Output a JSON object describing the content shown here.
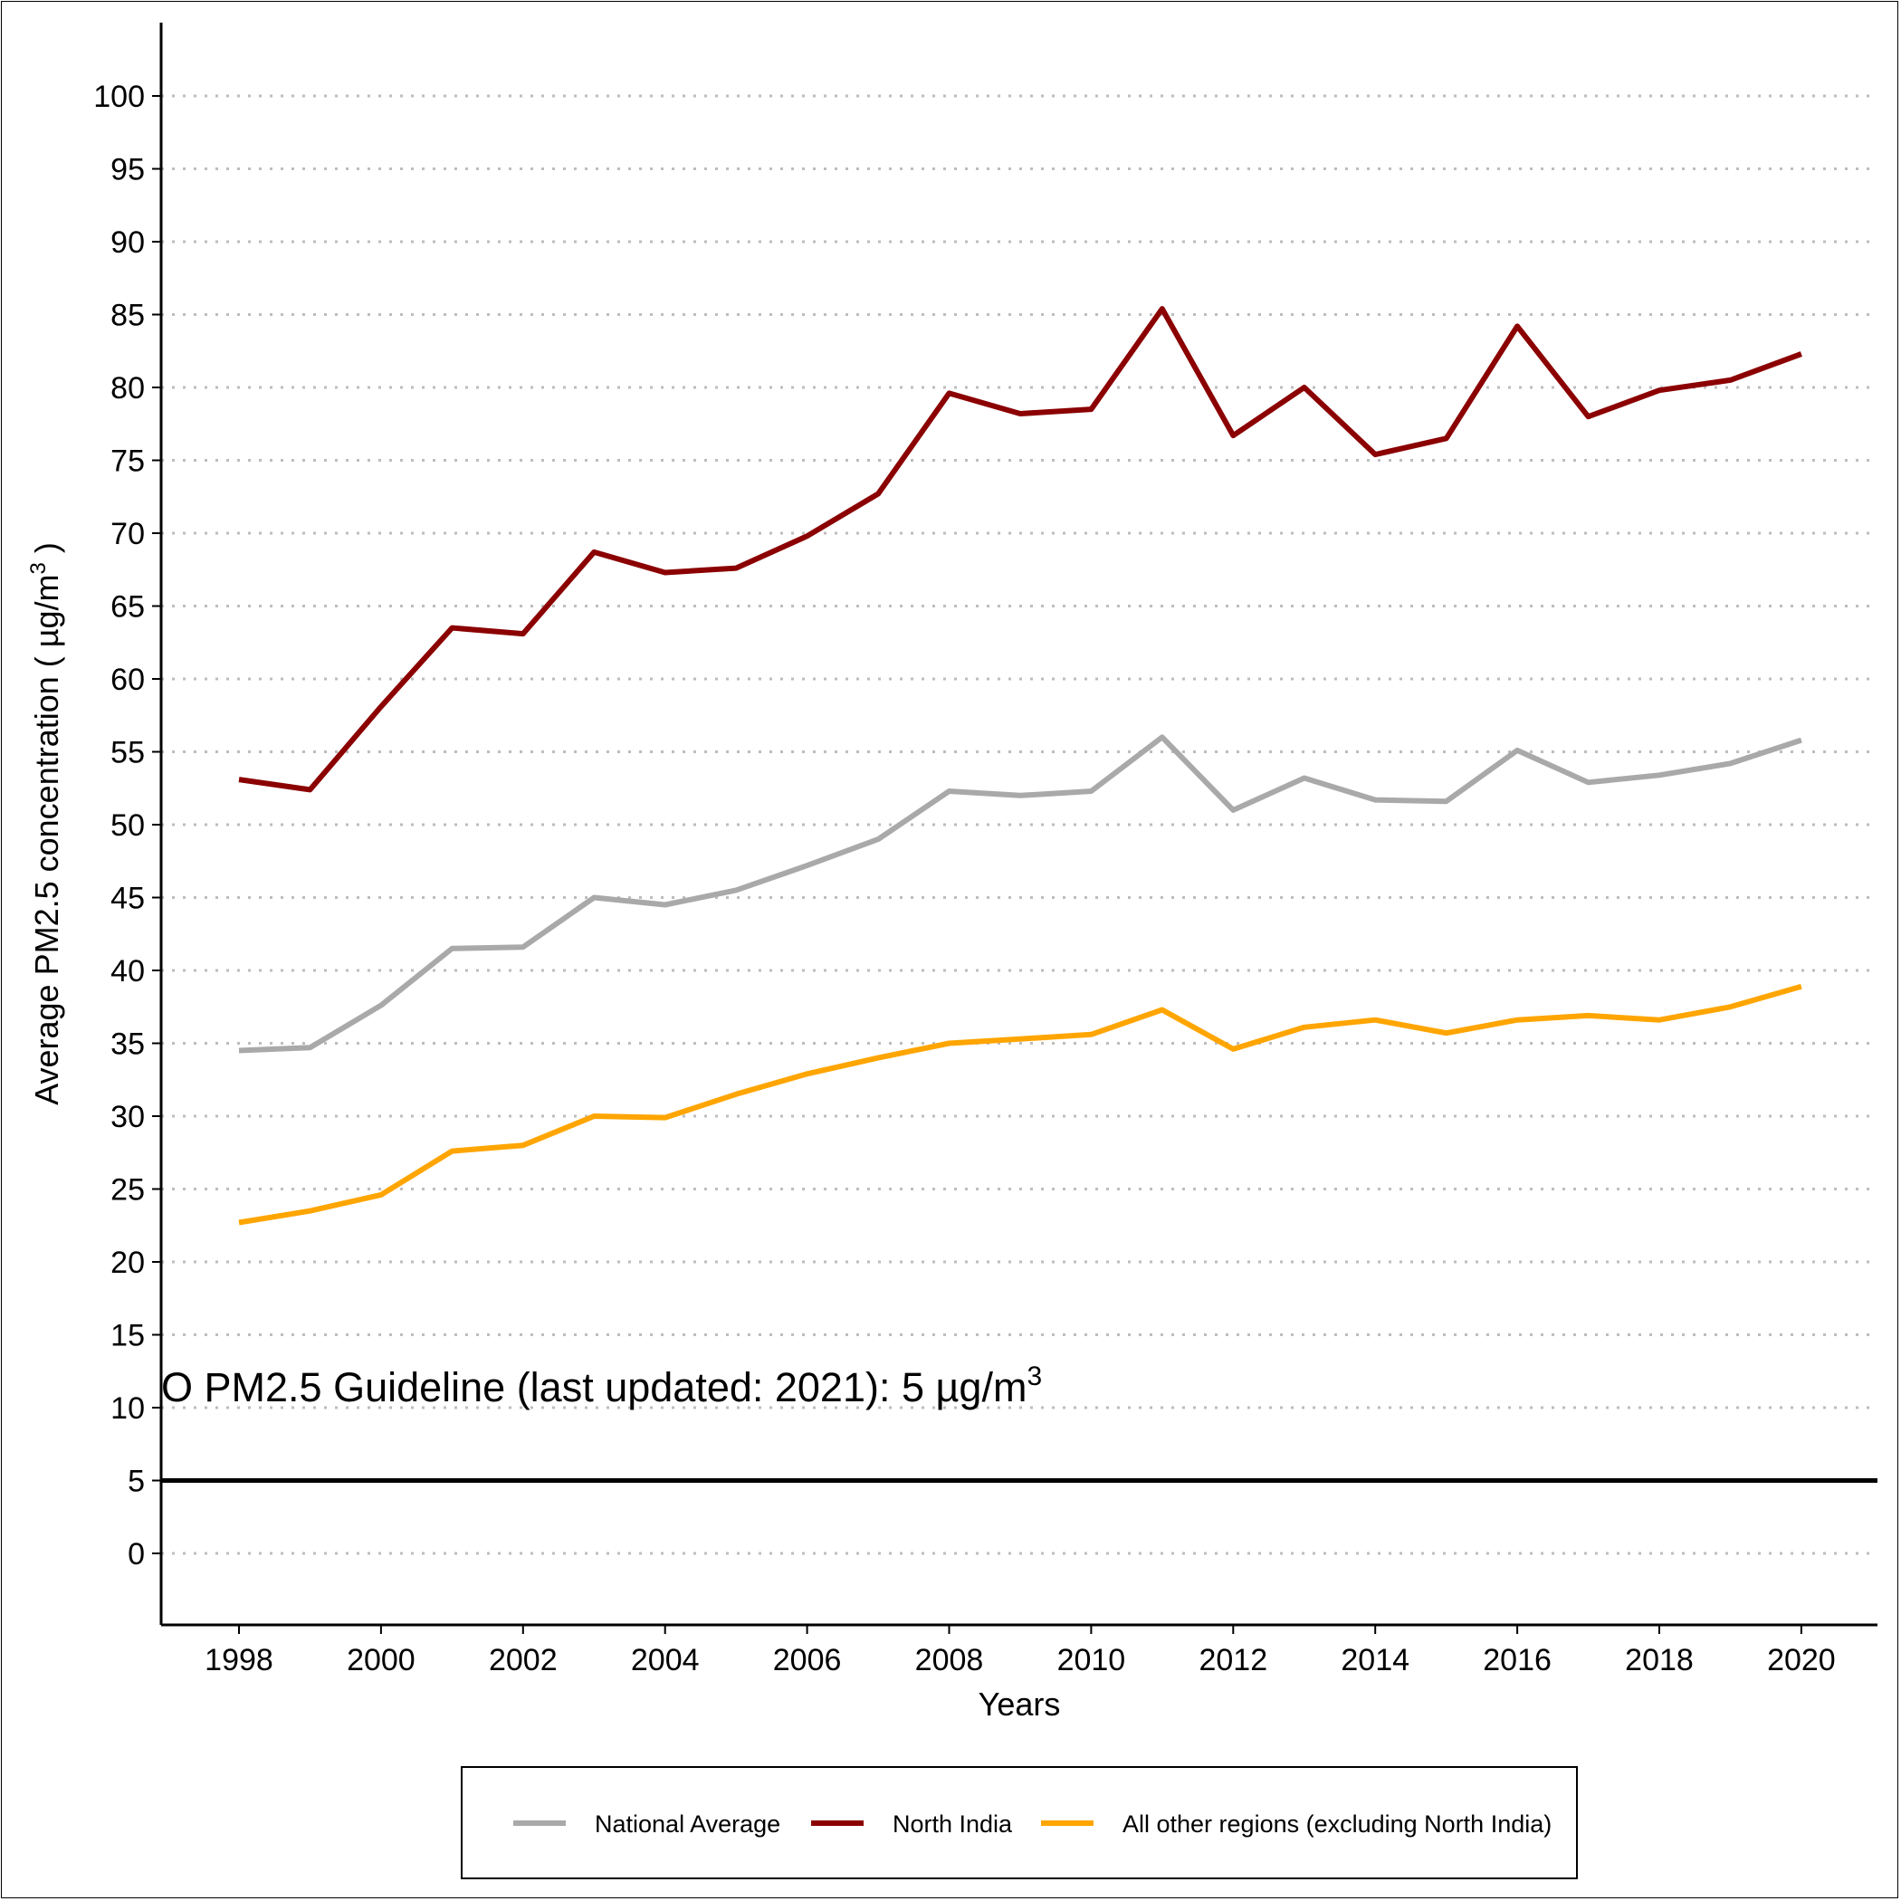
{
  "chart_data": {
    "type": "line",
    "xlabel": "Years",
    "ylabel": "Average PM2.5 concentration ( µg/m",
    "ylabel_superscript": "3",
    "ylabel_suffix": " )",
    "xlim": [
      1997,
      2021
    ],
    "ylim": [
      -5,
      105
    ],
    "x_ticks": [
      1998,
      2000,
      2002,
      2004,
      2006,
      2008,
      2010,
      2012,
      2014,
      2016,
      2018,
      2020
    ],
    "y_ticks": [
      0,
      5,
      10,
      15,
      20,
      25,
      30,
      35,
      40,
      45,
      50,
      55,
      60,
      65,
      70,
      75,
      80,
      85,
      90,
      95,
      100
    ],
    "grid": "horizontal dotted",
    "legend_position": "bottom",
    "x": [
      1998,
      1999,
      2000,
      2001,
      2002,
      2003,
      2004,
      2005,
      2006,
      2007,
      2008,
      2009,
      2010,
      2011,
      2012,
      2013,
      2014,
      2015,
      2016,
      2017,
      2018,
      2019,
      2020
    ],
    "series": [
      {
        "name": "National Average",
        "color": "#a9a9a9",
        "values": [
          34.5,
          34.7,
          37.6,
          41.5,
          41.6,
          45.0,
          44.5,
          45.5,
          47.2,
          49.0,
          52.3,
          52.0,
          52.3,
          56.0,
          51.0,
          53.2,
          51.7,
          51.6,
          55.1,
          52.9,
          53.4,
          54.2,
          55.8
        ]
      },
      {
        "name": "North India",
        "color": "#8b0000",
        "values": [
          53.1,
          52.4,
          58.1,
          63.5,
          63.1,
          68.7,
          67.3,
          67.6,
          69.8,
          72.7,
          79.6,
          78.2,
          78.5,
          85.4,
          76.7,
          80.0,
          75.4,
          76.5,
          84.2,
          78.0,
          79.8,
          80.5,
          82.3
        ]
      },
      {
        "name": "All other regions (excluding North India)",
        "color": "#ffa500",
        "values": [
          22.7,
          23.5,
          24.6,
          27.6,
          28.0,
          30.0,
          29.9,
          31.5,
          32.9,
          34.0,
          35.0,
          35.3,
          35.6,
          37.3,
          34.6,
          36.1,
          36.6,
          35.7,
          36.6,
          36.9,
          36.6,
          37.5,
          38.9
        ]
      }
    ],
    "reference_line": {
      "value": 5,
      "color": "#000000",
      "label": "O PM2.5 Guideline (last updated: 2021): 5 µg/m",
      "label_superscript": "3"
    }
  }
}
